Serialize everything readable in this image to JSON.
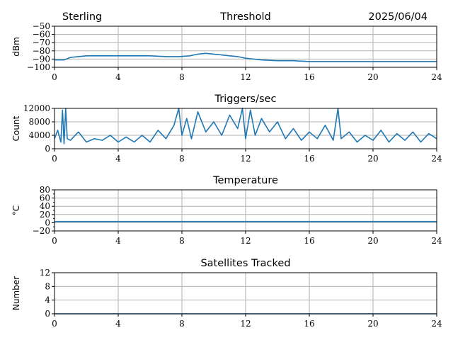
{
  "header": {
    "station": "Sterling",
    "date": "2025/06/04"
  },
  "colors": {
    "series": "#1f77b4",
    "grid": "#b0b0b0"
  },
  "chart_data": [
    {
      "type": "line",
      "title": "Threshold",
      "ylabel": "dBm",
      "xlabel": "",
      "xlim": [
        0,
        24
      ],
      "ylim": [
        -100,
        -50
      ],
      "xticks": [
        0,
        4,
        8,
        12,
        16,
        20,
        24
      ],
      "yticks": [
        -100,
        -90,
        -80,
        -70,
        -60,
        -50
      ],
      "ytick_labels": [
        "−100",
        "−90",
        "−80",
        "−70",
        "−60",
        "−50"
      ],
      "grid": true,
      "series": [
        {
          "x": [
            0,
            0.6,
            1,
            1.5,
            2,
            3,
            4,
            5,
            6,
            7,
            7.8,
            8.5,
            9,
            9.5,
            10,
            10.5,
            11,
            11.5,
            12,
            12.5,
            13,
            14,
            15,
            16,
            18,
            20,
            22,
            24
          ],
          "values": [
            -91,
            -91,
            -88,
            -87,
            -86,
            -86,
            -86,
            -86,
            -86,
            -87,
            -87,
            -86,
            -84,
            -83,
            -84,
            -85,
            -86,
            -87,
            -89,
            -90,
            -91,
            -92,
            -92,
            -93,
            -93,
            -93,
            -93,
            -93
          ]
        }
      ]
    },
    {
      "type": "line",
      "title": "Triggers/sec",
      "ylabel": "Count",
      "xlabel": "",
      "xlim": [
        0,
        24
      ],
      "ylim": [
        0,
        12000
      ],
      "xticks": [
        0,
        4,
        8,
        12,
        16,
        20,
        24
      ],
      "yticks": [
        0,
        4000,
        8000,
        12000
      ],
      "ytick_labels": [
        "0",
        "4000",
        "8000",
        "12000"
      ],
      "grid": true,
      "series": [
        {
          "x": [
            0,
            0.2,
            0.4,
            0.5,
            0.6,
            0.7,
            0.8,
            1,
            1.5,
            2,
            2.5,
            3,
            3.5,
            4,
            4.5,
            5,
            5.5,
            6,
            6.5,
            7,
            7.5,
            7.8,
            8,
            8.3,
            8.6,
            9,
            9.5,
            10,
            10.5,
            11,
            11.5,
            11.8,
            12,
            12.3,
            12.6,
            13,
            13.5,
            14,
            14.5,
            15,
            15.5,
            16,
            16.5,
            17,
            17.5,
            17.8,
            18,
            18.5,
            19,
            19.5,
            20,
            20.5,
            21,
            21.5,
            22,
            22.5,
            23,
            23.5,
            24
          ],
          "values": [
            3000,
            5500,
            2000,
            11500,
            1500,
            12000,
            3000,
            2500,
            5000,
            2000,
            3000,
            2500,
            4000,
            2000,
            3500,
            2000,
            4000,
            2000,
            5500,
            3000,
            7000,
            12000,
            4000,
            9000,
            3000,
            11000,
            5000,
            8000,
            4000,
            10000,
            6000,
            12000,
            3000,
            11500,
            4000,
            9000,
            5000,
            8000,
            3000,
            6000,
            2500,
            5000,
            3000,
            7000,
            2500,
            12000,
            3000,
            5000,
            2000,
            4000,
            2500,
            5500,
            2000,
            4500,
            2500,
            5000,
            2000,
            4500,
            3000
          ]
        }
      ]
    },
    {
      "type": "line",
      "title": "Temperature",
      "ylabel": "°C",
      "xlabel": "",
      "xlim": [
        0,
        24
      ],
      "ylim": [
        -20,
        80
      ],
      "xticks": [
        0,
        4,
        8,
        12,
        16,
        20,
        24
      ],
      "yticks": [
        -20,
        0,
        20,
        40,
        60,
        80
      ],
      "ytick_labels": [
        "−20",
        "0",
        "20",
        "40",
        "60",
        "80"
      ],
      "minor_yticks": [
        -10,
        10,
        30,
        50,
        70
      ],
      "grid": true,
      "series": [
        {
          "x": [
            0,
            24
          ],
          "values": [
            3,
            3
          ]
        }
      ]
    },
    {
      "type": "line",
      "title": "Satellites Tracked",
      "ylabel": "Number",
      "xlabel": "",
      "xlim": [
        0,
        24
      ],
      "ylim": [
        0,
        12
      ],
      "xticks": [
        0,
        4,
        8,
        12,
        16,
        20,
        24
      ],
      "yticks": [
        0,
        4,
        8,
        12
      ],
      "ytick_labels": [
        "0",
        "4",
        "8",
        "12"
      ],
      "grid": true,
      "series": [
        {
          "x": [
            0,
            24
          ],
          "values": [
            0,
            0
          ]
        }
      ]
    }
  ]
}
